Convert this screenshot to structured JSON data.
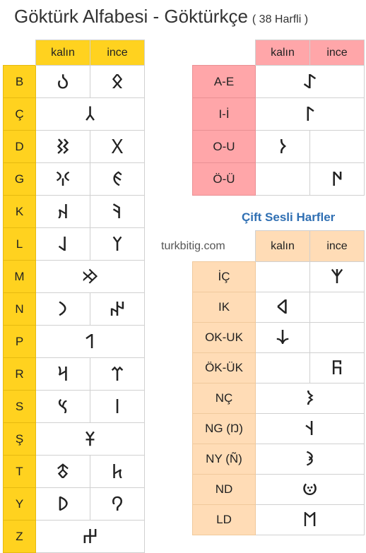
{
  "title": {
    "main": "Göktürk Alfabesi - Göktürkçe",
    "sub": "( 38 Harfli )"
  },
  "headers": {
    "thick": "kalın",
    "thin": "ince"
  },
  "website": "turkbitig.com",
  "double_heading": "Çift Sesli Harfler",
  "consonants": [
    {
      "label": "B",
      "kalin": "𐰉",
      "ince": "𐰋"
    },
    {
      "label": "Ç",
      "shared": "𐰲"
    },
    {
      "label": "D",
      "kalin": "𐰑",
      "ince": "𐰓"
    },
    {
      "label": "G",
      "kalin": "𐰍",
      "ince": "𐰏"
    },
    {
      "label": "K",
      "kalin": "𐰴",
      "ince": "𐰚"
    },
    {
      "label": "L",
      "kalin": "𐰞",
      "ince": "𐰠"
    },
    {
      "label": "M",
      "shared": "𐰢"
    },
    {
      "label": "N",
      "kalin": "𐰣",
      "ince": "𐰤"
    },
    {
      "label": "P",
      "shared": "𐰯"
    },
    {
      "label": "R",
      "kalin": "𐰺",
      "ince": "𐰼"
    },
    {
      "label": "S",
      "kalin": "𐰽",
      "ince": "𐰾"
    },
    {
      "label": "Ş",
      "shared": "𐱁"
    },
    {
      "label": "T",
      "kalin": "𐱃",
      "ince": "𐱅"
    },
    {
      "label": "Y",
      "kalin": "𐰖",
      "ince": "𐰘"
    },
    {
      "label": "Z",
      "shared": "𐰔"
    }
  ],
  "vowels": [
    {
      "label": "A-E",
      "shared": "𐰀"
    },
    {
      "label": "I-İ",
      "shared": "𐰃"
    },
    {
      "label": "O-U",
      "kalin": "𐰆",
      "ince": ""
    },
    {
      "label": "Ö-Ü",
      "kalin": "",
      "ince": "𐰇"
    }
  ],
  "doubles": [
    {
      "label": "İÇ",
      "kalin": "",
      "ince": "𐰱"
    },
    {
      "label": "IK",
      "kalin": "𐰶",
      "ince": ""
    },
    {
      "label": "OK-UK",
      "kalin": "𐰸",
      "ince": ""
    },
    {
      "label": "ÖK-ÜK",
      "kalin": "",
      "ince": "𐰜"
    },
    {
      "label": "NÇ",
      "shared": "𐰨"
    },
    {
      "label": "NG (Ŋ)",
      "shared": "𐰭"
    },
    {
      "label": "NY (Ñ)",
      "shared": "𐰪"
    },
    {
      "label": "ND",
      "shared": "𐰦"
    },
    {
      "label": "LD",
      "shared": "𐰡"
    }
  ]
}
